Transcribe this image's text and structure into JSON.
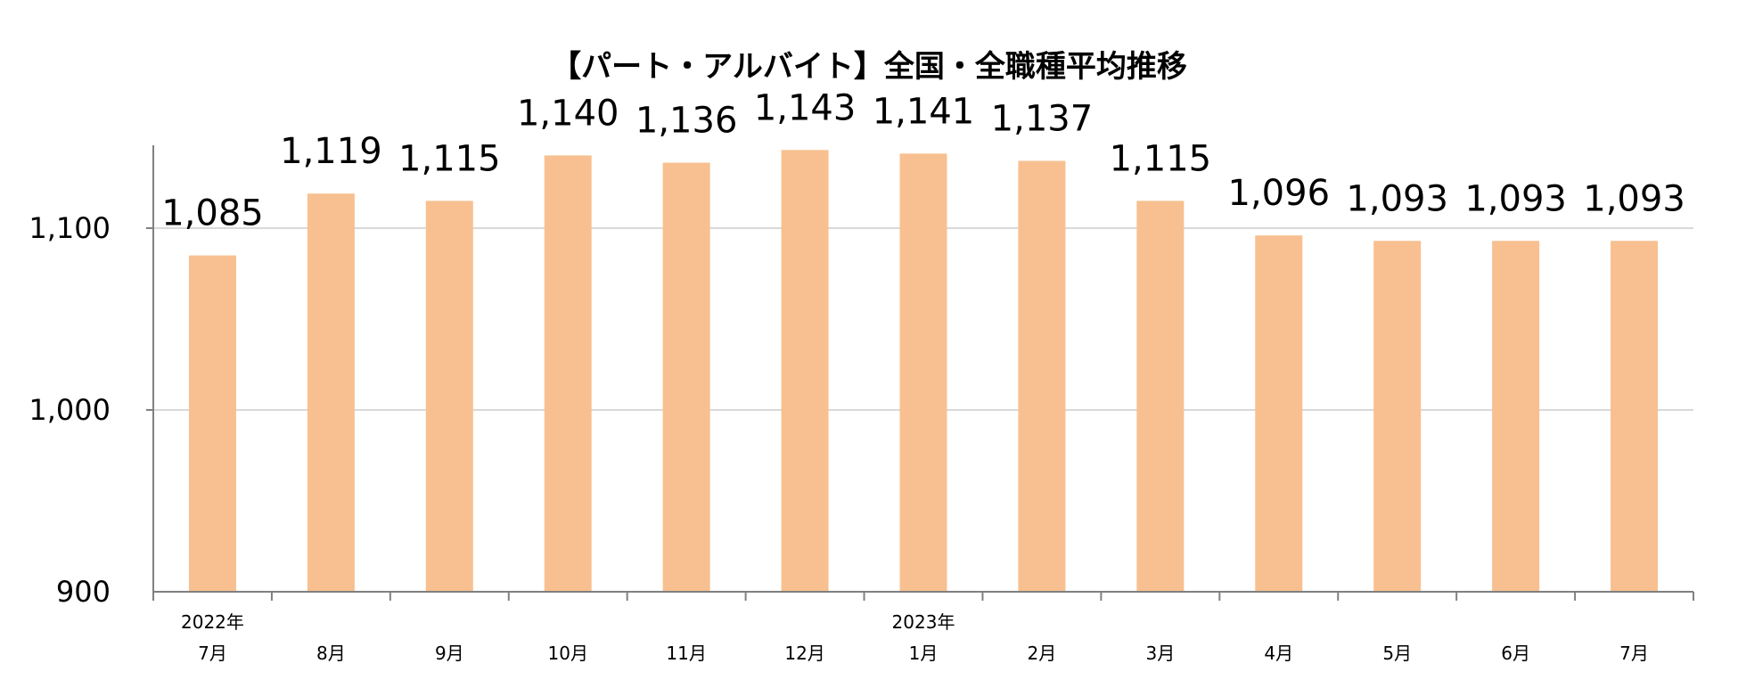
{
  "chart_data": {
    "type": "bar",
    "title": "【パート・アルバイト】全国・全職種平均推移",
    "categories": [
      "7月",
      "8月",
      "9月",
      "10月",
      "11月",
      "12月",
      "1月",
      "2月",
      "3月",
      "4月",
      "5月",
      "6月",
      "7月"
    ],
    "year_labels": [
      "2022年",
      "",
      "",
      "",
      "",
      "",
      "2023年",
      "",
      "",
      "",
      "",
      "",
      ""
    ],
    "values": [
      1085,
      1119,
      1115,
      1140,
      1136,
      1143,
      1141,
      1137,
      1115,
      1096,
      1093,
      1093,
      1093
    ],
    "value_labels": [
      "1,085",
      "1,119",
      "1,115",
      "1,140",
      "1,136",
      "1,143",
      "1,141",
      "1,137",
      "1,115",
      "1,096",
      "1,093",
      "1,093",
      "1,093"
    ],
    "ylim": [
      900,
      1150
    ],
    "yticks": [
      900,
      1000,
      1100
    ],
    "ytick_labels": [
      "900",
      "1,000",
      "1,100"
    ],
    "xlabel": "",
    "ylabel": "",
    "grid": true,
    "bar_color": "#f8c090"
  }
}
